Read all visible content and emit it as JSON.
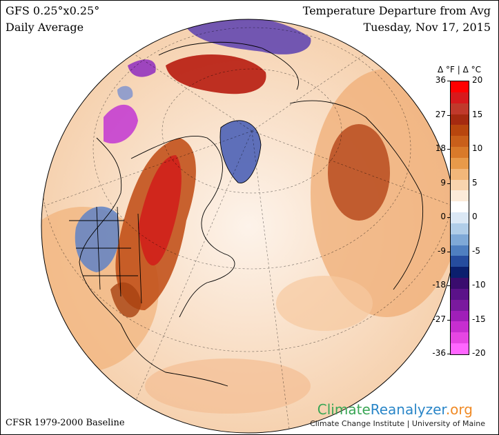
{
  "header": {
    "model": "GFS 0.25°x0.25°",
    "period": "Daily Average",
    "title": "Temperature Departure from Avg",
    "date": "Tuesday, Nov 17, 2015"
  },
  "footer": {
    "baseline": "CFSR 1979-2000 Baseline"
  },
  "logo": {
    "part1": "Climate",
    "part2": "Reanalyzer",
    "part3": ".org",
    "subtitle": "Climate Change Institute | University of Maine"
  },
  "legend": {
    "header": "Δ °F  |  Δ °C",
    "fahrenheit_ticks": [
      "36",
      "27",
      "18",
      "9",
      "0",
      "-9",
      "-18",
      "-27",
      "-36"
    ],
    "celsius_ticks": [
      "20",
      "15",
      "10",
      "5",
      "0",
      "-5",
      "-10",
      "-15",
      "-20"
    ],
    "colors_top_to_bottom": [
      "#ff0000",
      "#d7191c",
      "#c0392b",
      "#a52a10",
      "#b8460e",
      "#c95f1a",
      "#d97a2a",
      "#e89a4a",
      "#f2b77a",
      "#f8d4ae",
      "#fcebd9",
      "#ffffff",
      "#dbe8f5",
      "#b0cde8",
      "#7fa9d7",
      "#4f7fc0",
      "#264c9e",
      "#0b1f6e",
      "#3a0c6e",
      "#5b1289",
      "#7a1a9e",
      "#a01fb8",
      "#c72ed0",
      "#e646e3",
      "#ff66ff"
    ]
  },
  "colors": {
    "background": "#ffffff",
    "ocean_base": "#fbe7d3",
    "warm_strong": "#b8300f",
    "warm_medium": "#e07a3a",
    "cold_medium": "#5a7fc4",
    "cold_strong": "#b02cc8"
  }
}
